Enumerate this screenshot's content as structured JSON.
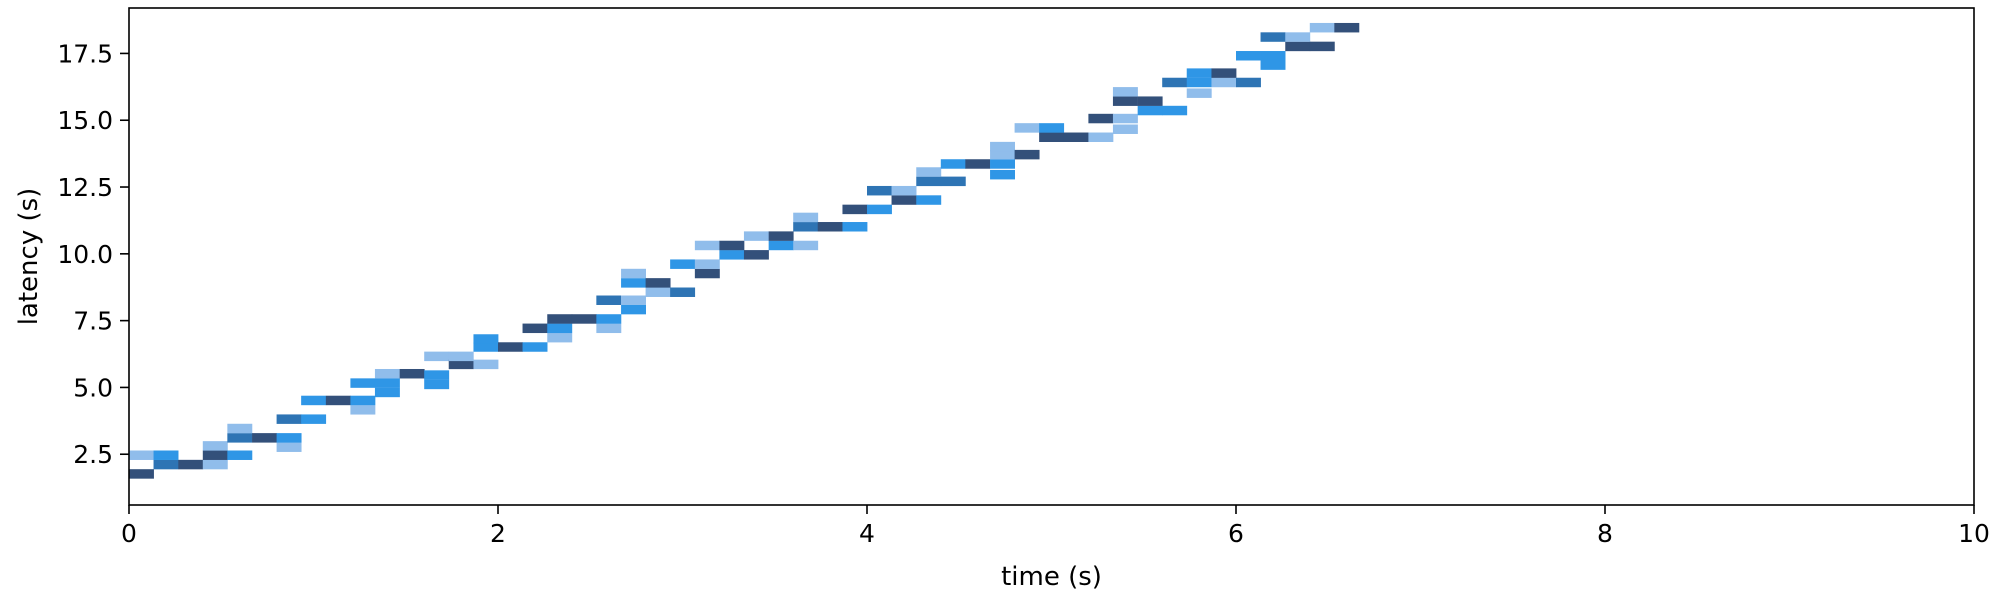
{
  "chart_data": {
    "type": "heatmap",
    "title": "",
    "xlabel": "time (s)",
    "ylabel": "latency (s)",
    "xlim": [
      0,
      10
    ],
    "ylim": [
      0.6,
      19.2
    ],
    "x_ticks": [
      0,
      2,
      4,
      6,
      8,
      10
    ],
    "x_tick_labels": [
      "0",
      "2",
      "4",
      "6",
      "8",
      "10"
    ],
    "y_ticks": [
      2.5,
      5.0,
      7.5,
      10.0,
      12.5,
      15.0,
      17.5
    ],
    "y_tick_labels": [
      "2.5",
      "5.0",
      "7.5",
      "10.0",
      "12.5",
      "15.0",
      "17.5"
    ],
    "grid": false,
    "legend": "none",
    "bin_width": 0.133,
    "bin_height": 0.34,
    "colors": {
      "light": "#90bdeb",
      "mid": "#2f96e6",
      "dark": "#2e74b4",
      "darkest": "#33507a",
      "axis": "#000000"
    },
    "cells": [
      {
        "x": 0.0,
        "y": 1.6,
        "level": "darkest"
      },
      {
        "x": 0.0,
        "y": 2.3,
        "level": "light"
      },
      {
        "x": 0.133,
        "y": 1.95,
        "level": "dark"
      },
      {
        "x": 0.133,
        "y": 2.3,
        "level": "mid"
      },
      {
        "x": 0.267,
        "y": 1.95,
        "level": "darkest"
      },
      {
        "x": 0.4,
        "y": 1.95,
        "level": "light"
      },
      {
        "x": 0.4,
        "y": 2.3,
        "level": "darkest"
      },
      {
        "x": 0.4,
        "y": 2.65,
        "level": "light"
      },
      {
        "x": 0.533,
        "y": 2.3,
        "level": "mid"
      },
      {
        "x": 0.533,
        "y": 2.95,
        "level": "dark"
      },
      {
        "x": 0.533,
        "y": 3.3,
        "level": "light"
      },
      {
        "x": 0.667,
        "y": 2.95,
        "level": "darkest"
      },
      {
        "x": 0.8,
        "y": 2.6,
        "level": "light"
      },
      {
        "x": 0.8,
        "y": 2.95,
        "level": "mid"
      },
      {
        "x": 0.8,
        "y": 3.65,
        "level": "dark"
      },
      {
        "x": 0.933,
        "y": 3.65,
        "level": "mid"
      },
      {
        "x": 0.933,
        "y": 4.35,
        "level": "mid"
      },
      {
        "x": 1.067,
        "y": 4.35,
        "level": "darkest"
      },
      {
        "x": 1.2,
        "y": 4.0,
        "level": "light"
      },
      {
        "x": 1.2,
        "y": 4.35,
        "level": "mid"
      },
      {
        "x": 1.2,
        "y": 5.0,
        "level": "mid"
      },
      {
        "x": 1.333,
        "y": 4.65,
        "level": "mid"
      },
      {
        "x": 1.333,
        "y": 5.0,
        "level": "mid"
      },
      {
        "x": 1.333,
        "y": 5.35,
        "level": "light"
      },
      {
        "x": 1.467,
        "y": 5.35,
        "level": "darkest"
      },
      {
        "x": 1.6,
        "y": 4.95,
        "level": "mid"
      },
      {
        "x": 1.6,
        "y": 5.3,
        "level": "mid"
      },
      {
        "x": 1.6,
        "y": 6.0,
        "level": "light"
      },
      {
        "x": 1.733,
        "y": 5.7,
        "level": "darkest"
      },
      {
        "x": 1.733,
        "y": 6.0,
        "level": "light"
      },
      {
        "x": 1.867,
        "y": 5.7,
        "level": "light"
      },
      {
        "x": 1.867,
        "y": 6.35,
        "level": "mid"
      },
      {
        "x": 1.867,
        "y": 6.65,
        "level": "mid"
      },
      {
        "x": 2.0,
        "y": 6.35,
        "level": "darkest"
      },
      {
        "x": 2.133,
        "y": 6.35,
        "level": "mid"
      },
      {
        "x": 2.133,
        "y": 7.05,
        "level": "darkest"
      },
      {
        "x": 2.267,
        "y": 6.7,
        "level": "light"
      },
      {
        "x": 2.267,
        "y": 7.05,
        "level": "mid"
      },
      {
        "x": 2.267,
        "y": 7.4,
        "level": "darkest"
      },
      {
        "x": 2.4,
        "y": 7.4,
        "level": "darkest"
      },
      {
        "x": 2.533,
        "y": 7.05,
        "level": "light"
      },
      {
        "x": 2.533,
        "y": 7.4,
        "level": "mid"
      },
      {
        "x": 2.533,
        "y": 8.1,
        "level": "dark"
      },
      {
        "x": 2.667,
        "y": 7.75,
        "level": "mid"
      },
      {
        "x": 2.667,
        "y": 8.1,
        "level": "light"
      },
      {
        "x": 2.667,
        "y": 8.75,
        "level": "mid"
      },
      {
        "x": 2.667,
        "y": 9.1,
        "level": "light"
      },
      {
        "x": 2.8,
        "y": 8.4,
        "level": "light"
      },
      {
        "x": 2.8,
        "y": 8.75,
        "level": "darkest"
      },
      {
        "x": 2.933,
        "y": 8.4,
        "level": "dark"
      },
      {
        "x": 2.933,
        "y": 9.45,
        "level": "mid"
      },
      {
        "x": 3.067,
        "y": 9.1,
        "level": "darkest"
      },
      {
        "x": 3.067,
        "y": 9.45,
        "level": "light"
      },
      {
        "x": 3.067,
        "y": 10.15,
        "level": "light"
      },
      {
        "x": 3.2,
        "y": 9.8,
        "level": "mid"
      },
      {
        "x": 3.2,
        "y": 10.15,
        "level": "darkest"
      },
      {
        "x": 3.333,
        "y": 9.8,
        "level": "darkest"
      },
      {
        "x": 3.333,
        "y": 10.5,
        "level": "light"
      },
      {
        "x": 3.467,
        "y": 10.15,
        "level": "mid"
      },
      {
        "x": 3.467,
        "y": 10.5,
        "level": "darkest"
      },
      {
        "x": 3.6,
        "y": 10.15,
        "level": "light"
      },
      {
        "x": 3.6,
        "y": 10.85,
        "level": "dark"
      },
      {
        "x": 3.6,
        "y": 11.2,
        "level": "light"
      },
      {
        "x": 3.733,
        "y": 10.85,
        "level": "darkest"
      },
      {
        "x": 3.867,
        "y": 10.85,
        "level": "mid"
      },
      {
        "x": 3.867,
        "y": 11.5,
        "level": "darkest"
      },
      {
        "x": 4.0,
        "y": 11.5,
        "level": "mid"
      },
      {
        "x": 4.0,
        "y": 12.2,
        "level": "dark"
      },
      {
        "x": 4.133,
        "y": 11.85,
        "level": "darkest"
      },
      {
        "x": 4.133,
        "y": 12.2,
        "level": "light"
      },
      {
        "x": 4.267,
        "y": 11.85,
        "level": "mid"
      },
      {
        "x": 4.267,
        "y": 12.55,
        "level": "dark"
      },
      {
        "x": 4.267,
        "y": 12.9,
        "level": "light"
      },
      {
        "x": 4.4,
        "y": 12.55,
        "level": "dark"
      },
      {
        "x": 4.4,
        "y": 13.2,
        "level": "mid"
      },
      {
        "x": 4.533,
        "y": 13.2,
        "level": "darkest"
      },
      {
        "x": 4.667,
        "y": 12.8,
        "level": "mid"
      },
      {
        "x": 4.667,
        "y": 13.2,
        "level": "mid"
      },
      {
        "x": 4.667,
        "y": 13.55,
        "level": "light"
      },
      {
        "x": 4.667,
        "y": 13.85,
        "level": "light"
      },
      {
        "x": 4.8,
        "y": 13.55,
        "level": "darkest"
      },
      {
        "x": 4.8,
        "y": 14.55,
        "level": "light"
      },
      {
        "x": 4.933,
        "y": 14.2,
        "level": "darkest"
      },
      {
        "x": 4.933,
        "y": 14.55,
        "level": "mid"
      },
      {
        "x": 5.067,
        "y": 14.2,
        "level": "darkest"
      },
      {
        "x": 5.2,
        "y": 14.2,
        "level": "light"
      },
      {
        "x": 5.2,
        "y": 14.9,
        "level": "darkest"
      },
      {
        "x": 5.333,
        "y": 14.5,
        "level": "light"
      },
      {
        "x": 5.333,
        "y": 14.9,
        "level": "light"
      },
      {
        "x": 5.333,
        "y": 15.55,
        "level": "darkest"
      },
      {
        "x": 5.333,
        "y": 15.9,
        "level": "light"
      },
      {
        "x": 5.467,
        "y": 15.2,
        "level": "mid"
      },
      {
        "x": 5.467,
        "y": 15.55,
        "level": "darkest"
      },
      {
        "x": 5.6,
        "y": 15.2,
        "level": "mid"
      },
      {
        "x": 5.6,
        "y": 16.25,
        "level": "dark"
      },
      {
        "x": 5.733,
        "y": 15.85,
        "level": "light"
      },
      {
        "x": 5.733,
        "y": 16.25,
        "level": "mid"
      },
      {
        "x": 5.733,
        "y": 16.6,
        "level": "mid"
      },
      {
        "x": 5.867,
        "y": 16.25,
        "level": "light"
      },
      {
        "x": 5.867,
        "y": 16.6,
        "level": "darkest"
      },
      {
        "x": 6.0,
        "y": 16.25,
        "level": "dark"
      },
      {
        "x": 6.0,
        "y": 17.25,
        "level": "mid"
      },
      {
        "x": 6.133,
        "y": 16.9,
        "level": "mid"
      },
      {
        "x": 6.133,
        "y": 17.25,
        "level": "mid"
      },
      {
        "x": 6.133,
        "y": 17.95,
        "level": "dark"
      },
      {
        "x": 6.267,
        "y": 17.6,
        "level": "darkest"
      },
      {
        "x": 6.267,
        "y": 17.95,
        "level": "light"
      },
      {
        "x": 6.4,
        "y": 17.6,
        "level": "darkest"
      },
      {
        "x": 6.4,
        "y": 18.3,
        "level": "light"
      },
      {
        "x": 6.533,
        "y": 18.3,
        "level": "darkest"
      }
    ]
  }
}
